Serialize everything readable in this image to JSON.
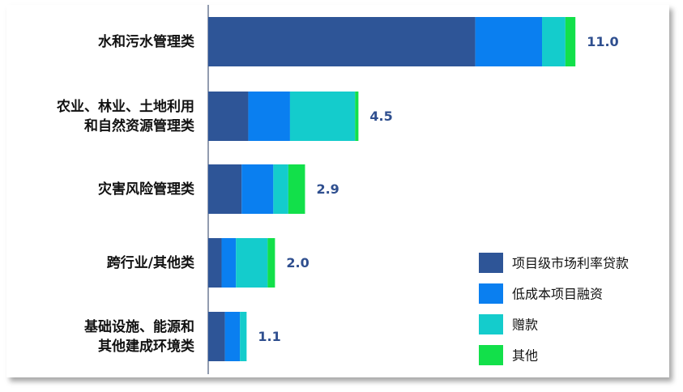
{
  "chart_data": {
    "type": "bar",
    "orientation": "horizontal",
    "stacked": true,
    "categories": [
      [
        "水和污水管理类"
      ],
      [
        "农业、林业、土地利用",
        "和自然资源管理类"
      ],
      [
        "灾害风险管理类"
      ],
      [
        "跨行业/其他类"
      ],
      [
        "基础设施、能源和",
        "其他建成环境类"
      ]
    ],
    "totals": [
      "11.0",
      "4.5",
      "2.9",
      "2.0",
      "1.1"
    ],
    "series": [
      {
        "name": "项目级市场利率贷款",
        "color": "#2e5597",
        "values": [
          8.0,
          1.2,
          1.0,
          0.4,
          0.5
        ]
      },
      {
        "name": "低成本项目融资",
        "color": "#0a7ff0",
        "values": [
          2.0,
          1.25,
          0.95,
          0.43,
          0.45
        ]
      },
      {
        "name": "赠款",
        "color": "#14cccc",
        "values": [
          0.7,
          1.95,
          0.45,
          0.95,
          0.2
        ]
      },
      {
        "name": "其他",
        "color": "#12e04a",
        "values": [
          0.3,
          0.1,
          0.5,
          0.22,
          0.0
        ]
      }
    ],
    "xlim": [
      0,
      13.5
    ],
    "legend_position": "bottom-right",
    "grid": false
  }
}
